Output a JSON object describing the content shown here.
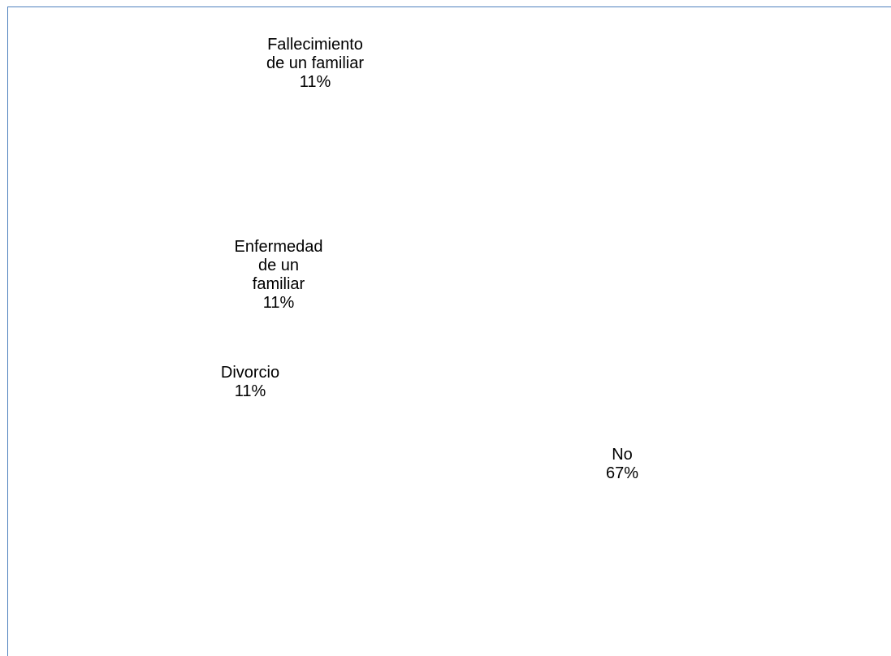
{
  "chart_data": {
    "type": "pie",
    "title": "",
    "slices": [
      {
        "label": "Fallecimiento\nde un familiar",
        "percent_label": "11%",
        "value": 11
      },
      {
        "label": "Enfermedad\nde un\nfamiliar",
        "percent_label": "11%",
        "value": 11
      },
      {
        "label": "Divorcio",
        "percent_label": "11%",
        "value": 11
      },
      {
        "label": "No",
        "percent_label": "67%",
        "value": 67
      }
    ],
    "slice_color": "#ffffff",
    "border_color": "#4f81bd",
    "legend": "none"
  }
}
